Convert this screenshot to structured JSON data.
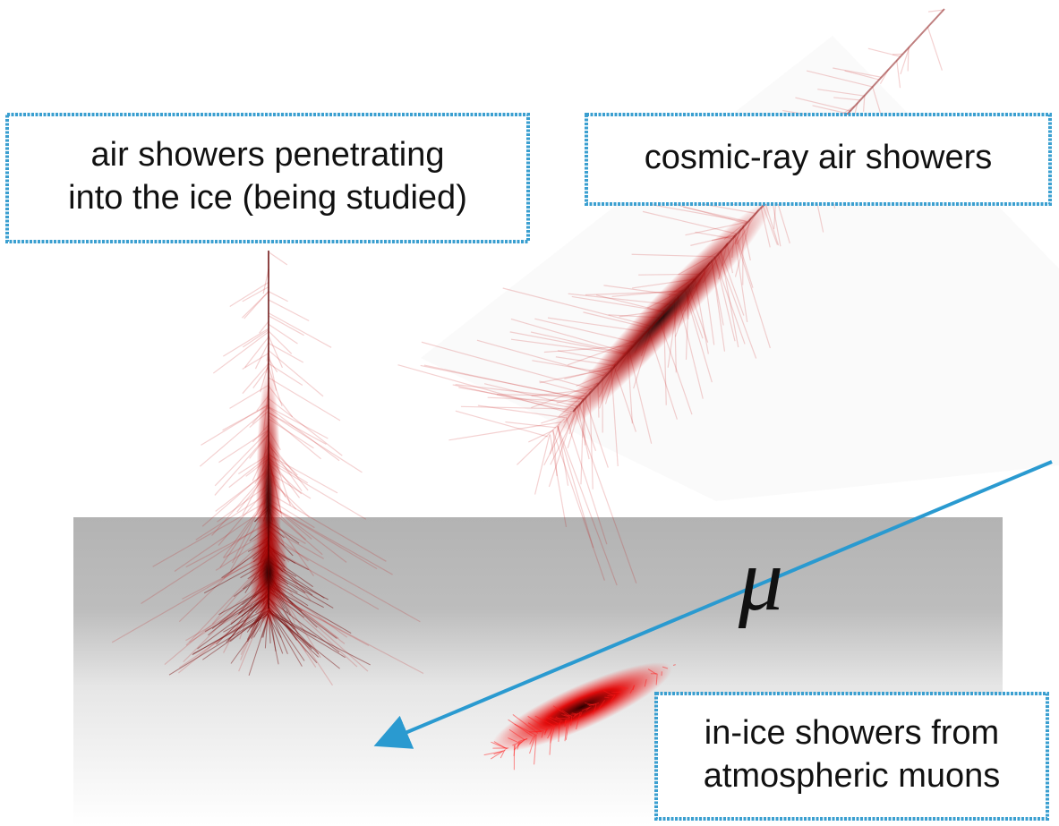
{
  "labels": [
    {
      "lines": [
        "air showers penetrating",
        "into the ice (being studied)"
      ]
    },
    {
      "lines": [
        "cosmic-ray air showers"
      ]
    },
    {
      "lines": [
        "in-ice showers from",
        "atmospheric muons"
      ]
    }
  ],
  "muon_symbol": "μ"
}
